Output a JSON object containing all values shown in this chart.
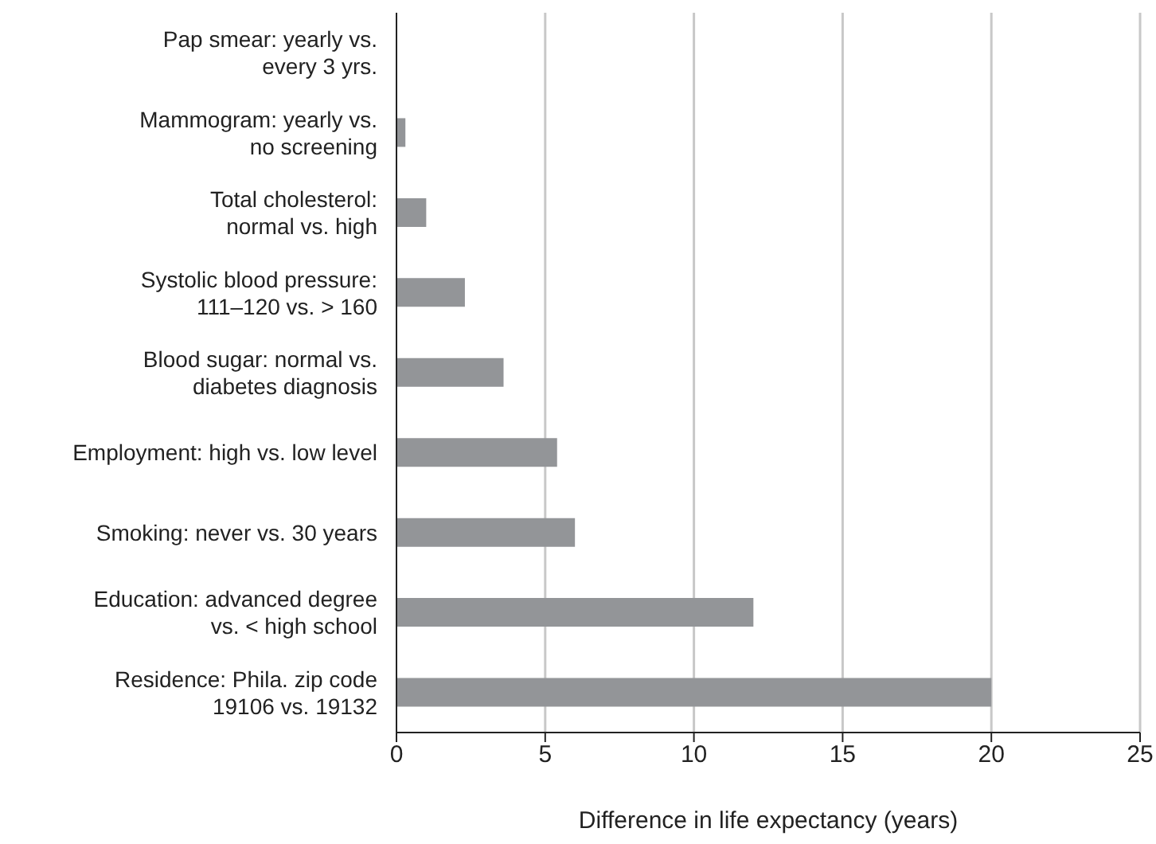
{
  "chart_data": {
    "type": "bar",
    "orientation": "horizontal",
    "xlabel": "Difference in life expectancy (years)",
    "categories": [
      "Pap smear: yearly vs.\nevery 3 yrs.",
      "Mammogram: yearly vs.\nno screening",
      "Total cholesterol:\nnormal vs. high",
      "Systolic blood pressure:\n111–120 vs. > 160",
      "Blood sugar: normal vs.\ndiabetes diagnosis",
      "Employment: high vs. low level",
      "Smoking: never vs. 30 years",
      "Education: advanced degree\nvs. < high school",
      "Residence: Phila. zip code\n19106 vs. 19132"
    ],
    "values": [
      0,
      0.3,
      1.0,
      2.3,
      3.6,
      5.4,
      6.0,
      12.0,
      20.0
    ],
    "color": "#939598",
    "xlim": [
      0,
      25
    ],
    "xticks": [
      0,
      5,
      10,
      15,
      20,
      25
    ],
    "grid": "x",
    "legend": false
  }
}
